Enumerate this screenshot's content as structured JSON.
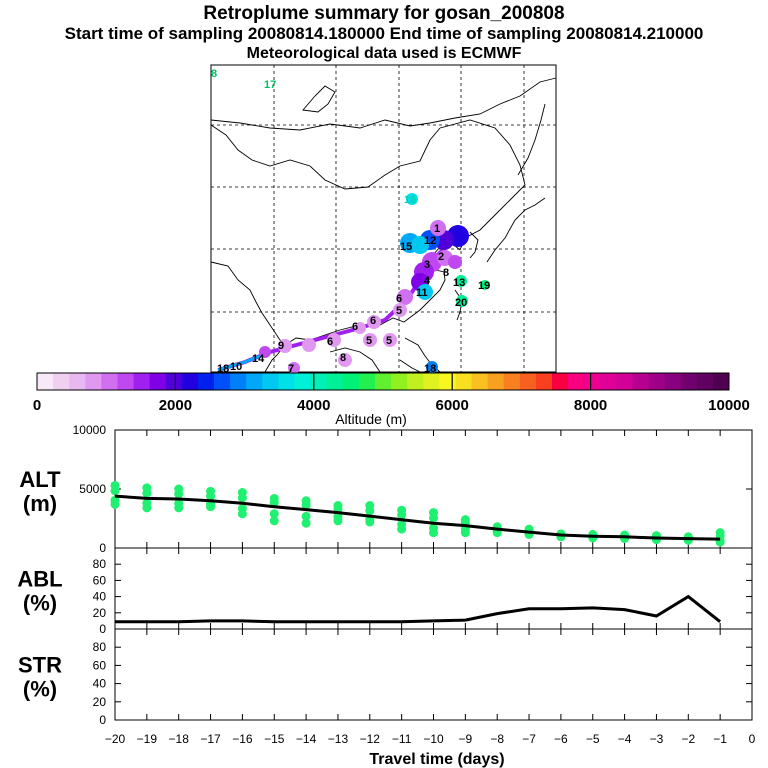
{
  "header": {
    "title": "Retroplume summary for gosan_200808",
    "sampling_line": "Start time of sampling 20080814.180000      End time of sampling 20080814.210000",
    "met_line": "Meteorological data used is ECMWF"
  },
  "map": {
    "labels": [
      {
        "text": "8",
        "color": "#00c060"
      },
      {
        "text": "17",
        "color": "#00c060"
      },
      {
        "text": "16",
        "color": "#00d0b0"
      },
      {
        "text": "1",
        "color": "#000"
      },
      {
        "text": "12",
        "color": "#000"
      },
      {
        "text": "15",
        "color": "#000"
      },
      {
        "text": "3",
        "color": "#000"
      },
      {
        "text": "2",
        "color": "#000"
      },
      {
        "text": "4",
        "color": "#000"
      },
      {
        "text": "8",
        "color": "#000"
      },
      {
        "text": "13",
        "color": "#000"
      },
      {
        "text": "19",
        "color": "#000"
      },
      {
        "text": "11",
        "color": "#000"
      },
      {
        "text": "20",
        "color": "#000"
      },
      {
        "text": "6",
        "color": "#000"
      },
      {
        "text": "5",
        "color": "#000"
      },
      {
        "text": "6",
        "color": "#000"
      },
      {
        "text": "6",
        "color": "#000"
      },
      {
        "text": "5",
        "color": "#000"
      },
      {
        "text": "5",
        "color": "#000"
      },
      {
        "text": "9",
        "color": "#000"
      },
      {
        "text": "6",
        "color": "#000"
      },
      {
        "text": "14",
        "color": "#000"
      },
      {
        "text": "10",
        "color": "#000"
      },
      {
        "text": "18",
        "color": "#000"
      },
      {
        "text": "7",
        "color": "#000"
      },
      {
        "text": "8",
        "color": "#000"
      },
      {
        "text": "18",
        "color": "#000"
      }
    ]
  },
  "colorbar": {
    "colors": [
      "#f8e8f8",
      "#f0d0f0",
      "#e8b8f0",
      "#e098f0",
      "#d070f0",
      "#c048f0",
      "#a020f0",
      "#8000e8",
      "#5000d8",
      "#2000e0",
      "#0020f0",
      "#0050f8",
      "#0080f8",
      "#00a8f8",
      "#00c8f0",
      "#00e0e8",
      "#00f0d8",
      "#00f0b8",
      "#00f098",
      "#00f078",
      "#20f050",
      "#60f030",
      "#90f020",
      "#c0f020",
      "#e0f020",
      "#f8f820",
      "#f8e020",
      "#f8c020",
      "#f8a020",
      "#f88020",
      "#f86020",
      "#f84020",
      "#f80040",
      "#f80080",
      "#f00090",
      "#e00098",
      "#d00098",
      "#b80090",
      "#a00088",
      "#880080",
      "#700070",
      "#600060",
      "#500050"
    ],
    "tick_labels": [
      "0",
      "2000",
      "4000",
      "6000",
      "8000",
      "10000"
    ],
    "label": "Altitude (m)"
  },
  "chart_data": [
    {
      "type": "line",
      "panel": "ALT",
      "ylabel": "ALT\n(m)",
      "ylabel_line1": "ALT",
      "ylabel_line2": "(m)",
      "xlim": [
        -20,
        0
      ],
      "ylim": [
        0,
        10000
      ],
      "yticks": [
        0,
        5000,
        10000
      ],
      "x": [
        -20,
        -19,
        -18,
        -17,
        -16,
        -15,
        -14,
        -13,
        -12,
        -11,
        -10,
        -9,
        -8,
        -7,
        -6,
        -5,
        -4,
        -3,
        -2,
        -1
      ],
      "series": [
        {
          "name": "median",
          "values": [
            4400,
            4200,
            4150,
            4000,
            3800,
            3500,
            3250,
            3000,
            2700,
            2400,
            2100,
            1900,
            1600,
            1350,
            1100,
            1000,
            950,
            850,
            800,
            750
          ]
        },
        {
          "name": "upper",
          "values": [
            5300,
            5100,
            5000,
            4800,
            4700,
            4200,
            4000,
            3600,
            3600,
            3200,
            3000,
            2400,
            1800,
            1600,
            1200,
            1150,
            1100,
            1050,
            950,
            1300
          ]
        },
        {
          "name": "lower",
          "values": [
            3700,
            3400,
            3400,
            3500,
            2900,
            2300,
            2100,
            2300,
            2200,
            1600,
            1300,
            1300,
            1300,
            1150,
            950,
            850,
            800,
            700,
            650,
            500
          ]
        }
      ],
      "point_color": "#20f070"
    },
    {
      "type": "line",
      "panel": "ABL",
      "ylabel_line1": "ABL",
      "ylabel_line2": "(%)",
      "xlim": [
        -20,
        0
      ],
      "ylim": [
        0,
        100
      ],
      "yticks": [
        0,
        20,
        40,
        60,
        80
      ],
      "x": [
        -20,
        -19,
        -18,
        -17,
        -16,
        -15,
        -14,
        -13,
        -12,
        -11,
        -10,
        -9,
        -8,
        -7,
        -6,
        -5,
        -4,
        -3,
        -2,
        -1
      ],
      "values": [
        9,
        9,
        9,
        10,
        10,
        9,
        9,
        9,
        9,
        9,
        10,
        11,
        19,
        25,
        25,
        26,
        24,
        16,
        40,
        9
      ]
    },
    {
      "type": "line",
      "panel": "STR",
      "ylabel_line1": "STR",
      "ylabel_line2": "(%)",
      "xlim": [
        -20,
        0
      ],
      "ylim": [
        0,
        100
      ],
      "yticks": [
        0,
        20,
        40,
        60,
        80
      ],
      "x": [],
      "values": []
    }
  ],
  "xaxis": {
    "tick_labels": [
      "−20",
      "−19",
      "−18",
      "−17",
      "−16",
      "−15",
      "−14",
      "−13",
      "−12",
      "−11",
      "−10",
      "−9",
      "−8",
      "−7",
      "−6",
      "−5",
      "−4",
      "−3",
      "−2",
      "−1",
      "0"
    ],
    "label": "Travel time (days)"
  }
}
